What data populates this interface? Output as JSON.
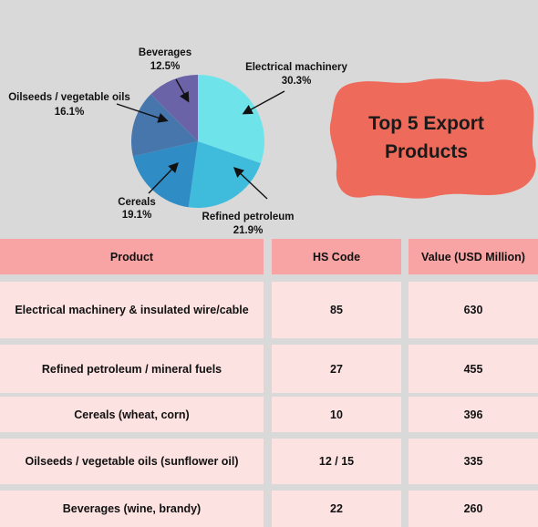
{
  "chart_data": {
    "type": "pie",
    "title": "",
    "slices": [
      {
        "label": "Electrical machinery",
        "value": 30.3,
        "pct_text": "30.3%",
        "color": "#6ee4ea"
      },
      {
        "label": "Refined petroleum",
        "value": 21.9,
        "pct_text": "21.9%",
        "color": "#3fbcdc"
      },
      {
        "label": "Cereals",
        "value": 19.1,
        "pct_text": "19.1%",
        "color": "#2f8cc4"
      },
      {
        "label": "Oilseeds / vegetable oils",
        "value": 16.1,
        "pct_text": "16.1%",
        "color": "#4676ac"
      },
      {
        "label": "Beverages",
        "value": 12.5,
        "pct_text": "12.5%",
        "color": "#6a63a8"
      }
    ]
  },
  "title_card": {
    "line1": "Top 5 Export",
    "line2": "Products",
    "color": "#ee6a5a"
  },
  "table": {
    "headers": [
      "Product",
      "HS Code",
      "Value (USD Million)"
    ],
    "rows": [
      [
        "Electrical machinery & insulated wire/cable",
        "85",
        "630"
      ],
      [
        "Refined petroleum / mineral fuels",
        "27",
        "455"
      ],
      [
        "Cereals (wheat, corn)",
        "10",
        "396"
      ],
      [
        "Oilseeds / vegetable oils (sunflower oil)",
        "12 / 15",
        "335"
      ],
      [
        "Beverages (wine, brandy)",
        "22",
        "260"
      ]
    ],
    "header_color": "#f9a4a4",
    "row_color": "#fde2e2"
  }
}
